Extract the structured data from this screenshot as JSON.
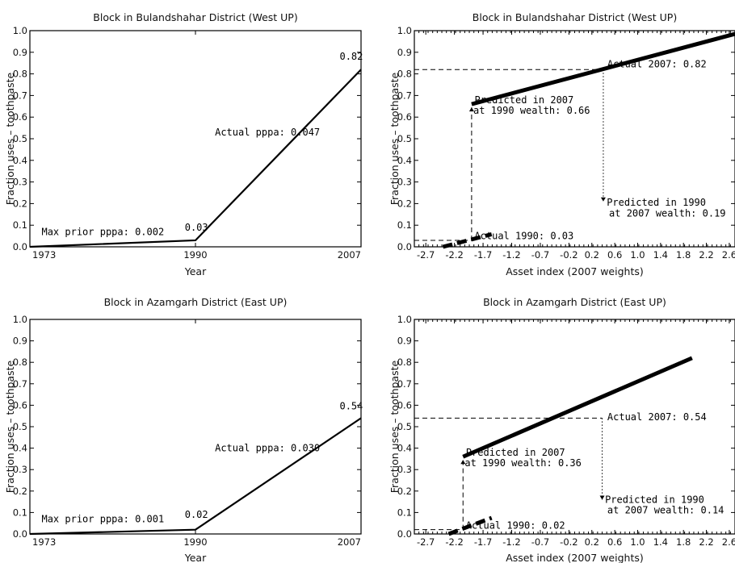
{
  "chart_data": [
    {
      "id": "tl",
      "type": "line",
      "title": "Block in Bulandshahar District (West UP)",
      "xlabel": "Year",
      "ylabel": "Fraction uses – toothpaste",
      "x_tick_labels": [
        "1973",
        "1990",
        "2007"
      ],
      "y_tick_labels": [
        "0.0",
        "0.1",
        "0.2",
        "0.3",
        "0.4",
        "0.5",
        "0.6",
        "0.7",
        "0.8",
        "0.9",
        "1.0"
      ],
      "ylim": [
        0,
        1
      ],
      "x": [
        1973,
        1990,
        2007
      ],
      "y": [
        0.0,
        0.03,
        0.82
      ],
      "annotations": [
        {
          "text": "Max prior pppa: 0.002",
          "x": 1974.2,
          "y": 0.055
        },
        {
          "text": "0.03",
          "x": 1988.9,
          "y": 0.075
        },
        {
          "text": "Actual pppa: 0.047",
          "x": 1992.0,
          "y": 0.515
        },
        {
          "text": "0.82",
          "x": 2004.8,
          "y": 0.865
        }
      ]
    },
    {
      "id": "tr",
      "type": "line",
      "title": "Block in Bulandshahar District (West UP)",
      "xlabel": "Asset index (2007 weights)",
      "ylabel": "Fraction uses – toothpaste",
      "x_ticks": [
        -2.7,
        -2.2,
        -1.7,
        -1.2,
        -0.7,
        -0.2,
        0.2,
        0.6,
        1.0,
        1.4,
        1.8,
        2.2,
        2.6
      ],
      "x_tick_labels": [
        "-2.7",
        "-2.2",
        "-1.7",
        "-1.2",
        "-0.7",
        "-0.2",
        "0.2",
        "0.6",
        "1.0",
        "1.4",
        "1.8",
        "2.2",
        "2.6"
      ],
      "y_tick_labels": [
        "0.0",
        "0.1",
        "0.2",
        "0.3",
        "0.4",
        "0.5",
        "0.6",
        "0.7",
        "0.8",
        "0.9",
        "1.0"
      ],
      "xlim": [
        -2.9,
        2.7
      ],
      "ylim": [
        0,
        1
      ],
      "series": [
        {
          "style": "solid",
          "x": [
            -1.9,
            2.7
          ],
          "y": [
            0.66,
            0.985
          ]
        },
        {
          "style": "dashed",
          "x": [
            -2.4,
            -1.55
          ],
          "y": [
            0.0,
            0.058
          ]
        }
      ],
      "guides": [
        {
          "style": "dashed",
          "x": [
            -2.9,
            0.4
          ],
          "y": [
            0.82,
            0.82
          ]
        },
        {
          "style": "dashed",
          "x": [
            -1.9,
            -1.9
          ],
          "y": [
            0.03,
            0.645
          ]
        },
        {
          "style": "dashed",
          "x": [
            -2.9,
            -1.9
          ],
          "y": [
            0.03,
            0.03
          ]
        },
        {
          "style": "dotted",
          "x": [
            0.4,
            0.4
          ],
          "y": [
            0.82,
            0.21
          ]
        }
      ],
      "annotations": [
        {
          "text": "Actual 2007: 0.82",
          "x": 0.47,
          "y": 0.83
        },
        {
          "text": "Predicted in 2007",
          "x": -1.85,
          "y": 0.665
        },
        {
          "text": "at 1990 wealth: 0.66",
          "x": -1.87,
          "y": 0.615
        },
        {
          "text": "Predicted in 1990",
          "x": 0.46,
          "y": 0.19
        },
        {
          "text": "at 2007 wealth: 0.19",
          "x": 0.5,
          "y": 0.14
        },
        {
          "text": "Actual 1990: 0.03",
          "x": -1.85,
          "y": 0.035
        }
      ]
    },
    {
      "id": "bl",
      "type": "line",
      "title": "Block in Azamgarh District (East UP)",
      "xlabel": "Year",
      "ylabel": "Fraction uses – toothpaste",
      "x_tick_labels": [
        "1973",
        "1990",
        "2007"
      ],
      "y_tick_labels": [
        "0.0",
        "0.1",
        "0.2",
        "0.3",
        "0.4",
        "0.5",
        "0.6",
        "0.7",
        "0.8",
        "0.9",
        "1.0"
      ],
      "ylim": [
        0,
        1
      ],
      "x": [
        1973,
        1990,
        2007
      ],
      "y": [
        0.0,
        0.02,
        0.54
      ],
      "annotations": [
        {
          "text": "Max prior pppa: 0.001",
          "x": 1974.2,
          "y": 0.055
        },
        {
          "text": "0.02",
          "x": 1988.9,
          "y": 0.075
        },
        {
          "text": "Actual pppa: 0.030",
          "x": 1992.0,
          "y": 0.385
        },
        {
          "text": "0.54",
          "x": 2004.8,
          "y": 0.58
        }
      ]
    },
    {
      "id": "br",
      "type": "line",
      "title": "Block in Azamgarh District (East UP)",
      "xlabel": "Asset index (2007 weights)",
      "ylabel": "Fraction uses – toothpaste",
      "x_ticks": [
        -2.7,
        -2.2,
        -1.7,
        -1.2,
        -0.7,
        -0.2,
        0.2,
        0.6,
        1.0,
        1.4,
        1.8,
        2.2,
        2.6
      ],
      "x_tick_labels": [
        "-2.7",
        "-2.2",
        "-1.7",
        "-1.2",
        "-0.7",
        "-0.2",
        "0.2",
        "0.6",
        "1.0",
        "1.4",
        "1.8",
        "2.2",
        "2.6"
      ],
      "y_tick_labels": [
        "0.0",
        "0.1",
        "0.2",
        "0.3",
        "0.4",
        "0.5",
        "0.6",
        "0.7",
        "0.8",
        "0.9",
        "1.0"
      ],
      "xlim": [
        -2.9,
        2.7
      ],
      "ylim": [
        0,
        1
      ],
      "series": [
        {
          "style": "solid",
          "x": [
            -2.05,
            1.95
          ],
          "y": [
            0.36,
            0.82
          ]
        },
        {
          "style": "dashed",
          "x": [
            -2.3,
            -1.55
          ],
          "y": [
            0.0,
            0.075
          ]
        }
      ],
      "guides": [
        {
          "style": "dashed",
          "x": [
            -2.9,
            0.38
          ],
          "y": [
            0.54,
            0.54
          ]
        },
        {
          "style": "dashed",
          "x": [
            -2.05,
            -2.05
          ],
          "y": [
            0.02,
            0.345
          ]
        },
        {
          "style": "dashed",
          "x": [
            -2.9,
            -2.05
          ],
          "y": [
            0.02,
            0.02
          ]
        },
        {
          "style": "dotted",
          "x": [
            0.38,
            0.38
          ],
          "y": [
            0.54,
            0.16
          ]
        }
      ],
      "annotations": [
        {
          "text": "Actual 2007: 0.54",
          "x": 0.47,
          "y": 0.53
        },
        {
          "text": "Predicted in 2007",
          "x": -2.0,
          "y": 0.365
        },
        {
          "text": "at 1990 wealth: 0.36",
          "x": -2.02,
          "y": 0.315
        },
        {
          "text": "Predicted in 1990",
          "x": 0.43,
          "y": 0.145
        },
        {
          "text": "at 2007 wealth: 0.14",
          "x": 0.47,
          "y": 0.095
        },
        {
          "text": "Actual 1990: 0.02",
          "x": -2.0,
          "y": 0.025
        }
      ]
    }
  ]
}
